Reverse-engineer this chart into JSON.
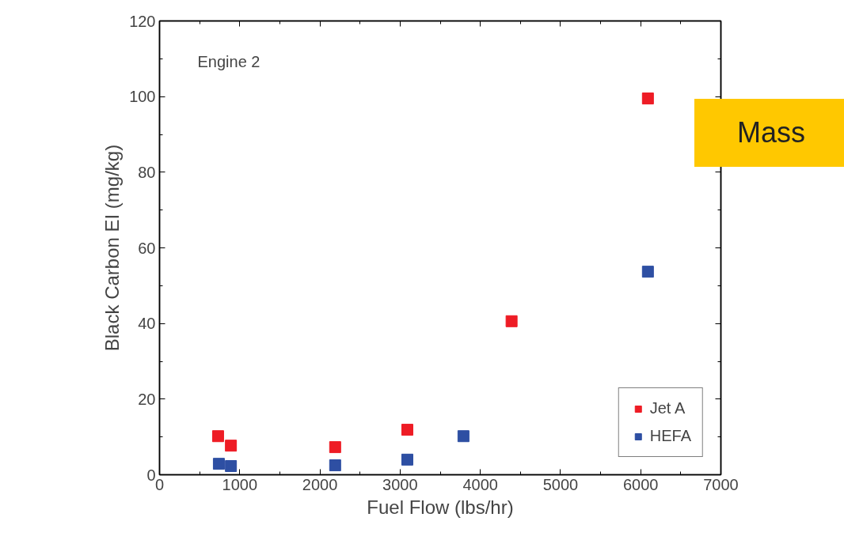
{
  "chart_data": {
    "type": "scatter",
    "xlabel": "Fuel Flow (lbs/hr)",
    "ylabel": "Black Carbon EI (mg/kg)",
    "annotations": [
      "Engine 2",
      "Mass"
    ],
    "xlim": [
      0,
      7000
    ],
    "xticks": [
      0,
      1000,
      2000,
      3000,
      4000,
      5000,
      6000,
      7000
    ],
    "ylim": [
      0,
      120
    ],
    "yticks": [
      0,
      20,
      40,
      60,
      80,
      100,
      120
    ],
    "grid": false,
    "legend": "bottom right",
    "marker": "square",
    "series": [
      {
        "name": "Jet A",
        "color": "#ee1c25",
        "x": [
          730,
          890,
          2190,
          3090,
          4390,
          6090
        ],
        "values": [
          10.2,
          7.7,
          7.3,
          11.9,
          40.6,
          99.5
        ]
      },
      {
        "name": "HEFA",
        "color": "#2e4fa3",
        "x": [
          740,
          890,
          2190,
          3090,
          3790,
          6090
        ],
        "values": [
          2.9,
          2.3,
          2.5,
          4.0,
          10.2,
          53.7
        ]
      }
    ]
  }
}
